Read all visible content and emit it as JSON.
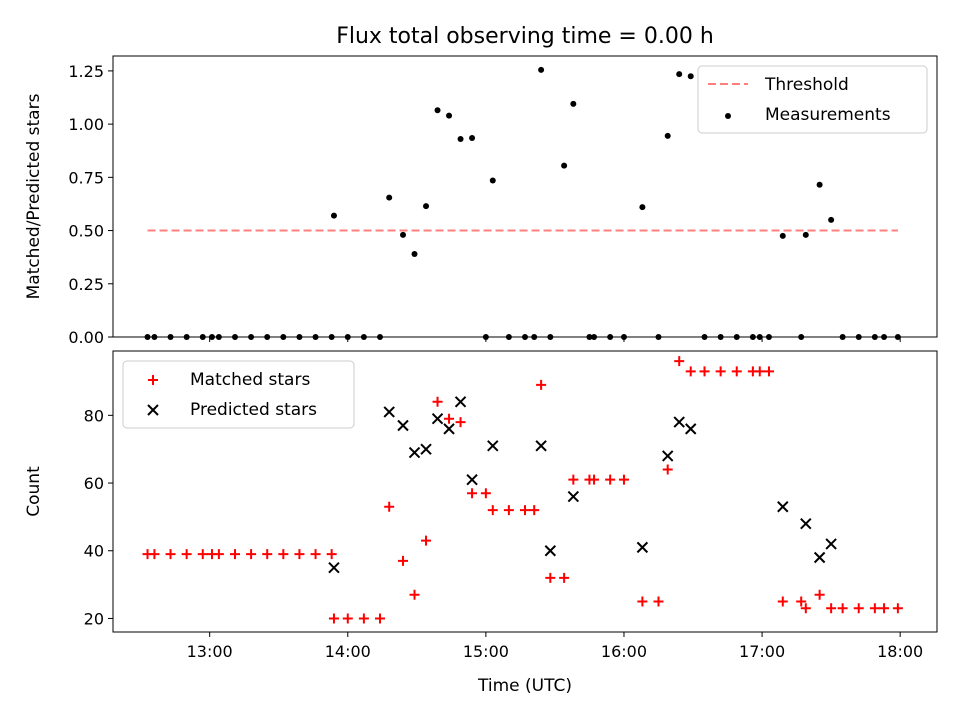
{
  "figure": {
    "title": "Flux total observing time = 0.00 h"
  },
  "chart_data": [
    {
      "type": "scatter",
      "ylabel": "Matched/Predicted stars",
      "xlabel": "",
      "xlim": [
        "12:18",
        "18:16"
      ],
      "ylim": [
        0,
        1.32
      ],
      "yticks": [
        0.0,
        0.25,
        0.5,
        0.75,
        1.0,
        1.25
      ],
      "ytick_labels": [
        "0.00",
        "0.25",
        "0.50",
        "0.75",
        "1.00",
        "1.25"
      ],
      "xticks": [
        "13:00",
        "14:00",
        "15:00",
        "16:00",
        "17:00",
        "18:00"
      ],
      "xtick_labels_shown": false,
      "legend_position": "top-right",
      "series": [
        {
          "name": "Threshold",
          "kind": "dashed-line",
          "color": "#ff7f7f",
          "points": [
            [
              "12:33",
              0.5
            ],
            [
              "17:59",
              0.5
            ]
          ]
        },
        {
          "name": "Measurements",
          "kind": "dot",
          "color": "#000000",
          "points": [
            [
              "12:33",
              0.0
            ],
            [
              "12:36",
              0.0
            ],
            [
              "12:43",
              0.0
            ],
            [
              "12:50",
              0.0
            ],
            [
              "12:57",
              0.0
            ],
            [
              "13:01",
              0.0
            ],
            [
              "13:04",
              0.0
            ],
            [
              "13:11",
              0.0
            ],
            [
              "13:18",
              0.0
            ],
            [
              "13:25",
              0.0
            ],
            [
              "13:32",
              0.0
            ],
            [
              "13:39",
              0.0
            ],
            [
              "13:46",
              0.0
            ],
            [
              "13:53",
              0.0
            ],
            [
              "13:54",
              0.57
            ],
            [
              "14:00",
              0.0
            ],
            [
              "14:07",
              0.0
            ],
            [
              "14:14",
              0.0
            ],
            [
              "14:18",
              0.655
            ],
            [
              "14:24",
              0.48
            ],
            [
              "14:29",
              0.39
            ],
            [
              "14:34",
              0.615
            ],
            [
              "14:39",
              1.065
            ],
            [
              "14:44",
              1.04
            ],
            [
              "14:49",
              0.93
            ],
            [
              "14:54",
              0.935
            ],
            [
              "15:00",
              0.0
            ],
            [
              "15:03",
              0.735
            ],
            [
              "15:10",
              0.0
            ],
            [
              "15:17",
              0.0
            ],
            [
              "15:21",
              0.0
            ],
            [
              "15:24",
              1.255
            ],
            [
              "15:28",
              0.0
            ],
            [
              "15:34",
              0.805
            ],
            [
              "15:38",
              1.095
            ],
            [
              "15:45",
              0.0
            ],
            [
              "15:47",
              0.0
            ],
            [
              "15:54",
              0.0
            ],
            [
              "16:00",
              0.0
            ],
            [
              "16:08",
              0.61
            ],
            [
              "16:15",
              0.0
            ],
            [
              "16:19",
              0.945
            ],
            [
              "16:24",
              1.235
            ],
            [
              "16:29",
              1.225
            ],
            [
              "16:35",
              0.0
            ],
            [
              "16:42",
              0.0
            ],
            [
              "16:49",
              0.0
            ],
            [
              "16:56",
              0.0
            ],
            [
              "16:59",
              0.0
            ],
            [
              "17:03",
              0.0
            ],
            [
              "17:09",
              0.475
            ],
            [
              "17:17",
              0.0
            ],
            [
              "17:19",
              0.48
            ],
            [
              "17:25",
              0.715
            ],
            [
              "17:30",
              0.55
            ],
            [
              "17:35",
              0.0
            ],
            [
              "17:42",
              0.0
            ],
            [
              "17:49",
              0.0
            ],
            [
              "17:53",
              0.0
            ],
            [
              "17:59",
              0.0
            ]
          ]
        }
      ]
    },
    {
      "type": "scatter",
      "ylabel": "Count",
      "xlabel": "Time (UTC)",
      "xlim": [
        "12:18",
        "18:16"
      ],
      "ylim": [
        16,
        99
      ],
      "yticks": [
        20,
        40,
        60,
        80
      ],
      "ytick_labels": [
        "20",
        "40",
        "60",
        "80"
      ],
      "xticks": [
        "13:00",
        "14:00",
        "15:00",
        "16:00",
        "17:00",
        "18:00"
      ],
      "xtick_labels": [
        "13:00",
        "14:00",
        "15:00",
        "16:00",
        "17:00",
        "18:00"
      ],
      "legend_position": "top-left",
      "series": [
        {
          "name": "Matched stars",
          "kind": "plus",
          "color": "#ff0000",
          "points": [
            [
              "12:33",
              39
            ],
            [
              "12:36",
              39
            ],
            [
              "12:43",
              39
            ],
            [
              "12:50",
              39
            ],
            [
              "12:57",
              39
            ],
            [
              "13:01",
              39
            ],
            [
              "13:04",
              39
            ],
            [
              "13:11",
              39
            ],
            [
              "13:18",
              39
            ],
            [
              "13:25",
              39
            ],
            [
              "13:32",
              39
            ],
            [
              "13:39",
              39
            ],
            [
              "13:46",
              39
            ],
            [
              "13:53",
              39
            ],
            [
              "13:54",
              20
            ],
            [
              "14:00",
              20
            ],
            [
              "14:07",
              20
            ],
            [
              "14:14",
              20
            ],
            [
              "14:18",
              53
            ],
            [
              "14:24",
              37
            ],
            [
              "14:29",
              27
            ],
            [
              "14:34",
              43
            ],
            [
              "14:39",
              84
            ],
            [
              "14:44",
              79
            ],
            [
              "14:49",
              78
            ],
            [
              "14:54",
              57
            ],
            [
              "15:00",
              57
            ],
            [
              "15:03",
              52
            ],
            [
              "15:10",
              52
            ],
            [
              "15:17",
              52
            ],
            [
              "15:21",
              52
            ],
            [
              "15:24",
              89
            ],
            [
              "15:28",
              32
            ],
            [
              "15:34",
              32
            ],
            [
              "15:38",
              61
            ],
            [
              "15:45",
              61
            ],
            [
              "15:47",
              61
            ],
            [
              "15:54",
              61
            ],
            [
              "16:00",
              61
            ],
            [
              "16:08",
              25
            ],
            [
              "16:15",
              25
            ],
            [
              "16:19",
              64
            ],
            [
              "16:24",
              96
            ],
            [
              "16:29",
              93
            ],
            [
              "16:35",
              93
            ],
            [
              "16:42",
              93
            ],
            [
              "16:49",
              93
            ],
            [
              "16:56",
              93
            ],
            [
              "16:59",
              93
            ],
            [
              "17:03",
              93
            ],
            [
              "17:09",
              25
            ],
            [
              "17:17",
              25
            ],
            [
              "17:19",
              23
            ],
            [
              "17:25",
              27
            ],
            [
              "17:30",
              23
            ],
            [
              "17:35",
              23
            ],
            [
              "17:42",
              23
            ],
            [
              "17:49",
              23
            ],
            [
              "17:53",
              23
            ],
            [
              "17:59",
              23
            ]
          ]
        },
        {
          "name": "Predicted stars",
          "kind": "x",
          "color": "#000000",
          "points": [
            [
              "13:54",
              35
            ],
            [
              "14:18",
              81
            ],
            [
              "14:24",
              77
            ],
            [
              "14:29",
              69
            ],
            [
              "14:34",
              70
            ],
            [
              "14:39",
              79
            ],
            [
              "14:44",
              76
            ],
            [
              "14:49",
              84
            ],
            [
              "14:54",
              61
            ],
            [
              "15:03",
              71
            ],
            [
              "15:24",
              71
            ],
            [
              "15:28",
              40
            ],
            [
              "15:38",
              56
            ],
            [
              "16:08",
              41
            ],
            [
              "16:19",
              68
            ],
            [
              "16:24",
              78
            ],
            [
              "16:29",
              76
            ],
            [
              "17:09",
              53
            ],
            [
              "17:19",
              48
            ],
            [
              "17:25",
              38
            ],
            [
              "17:30",
              42
            ]
          ]
        }
      ]
    }
  ]
}
